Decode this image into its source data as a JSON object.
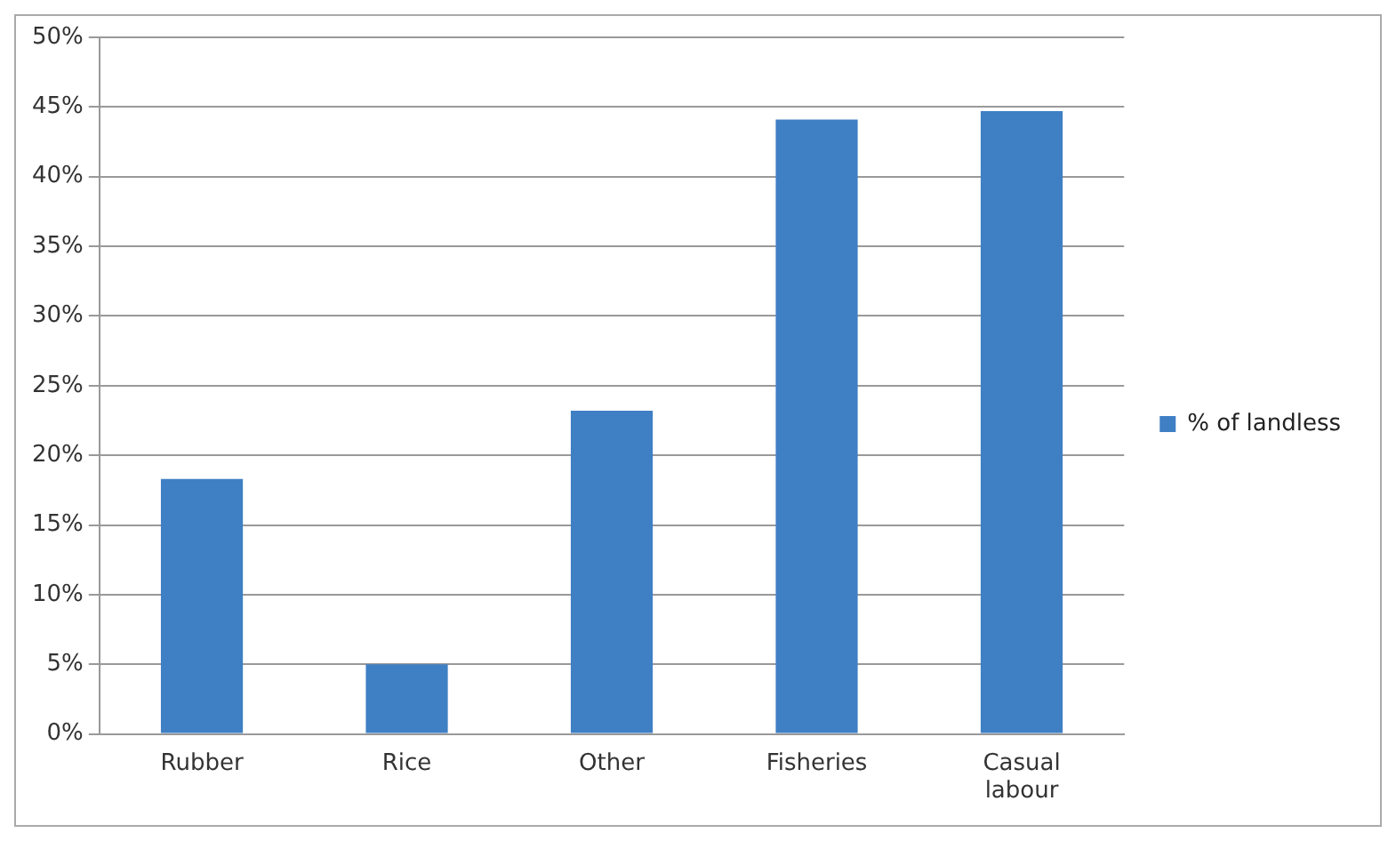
{
  "chart_data": {
    "type": "bar",
    "categories": [
      "Rubber",
      "Rice",
      "Other",
      "Fisheries",
      "Casual labour"
    ],
    "series": [
      {
        "name": "% of landless",
        "color": "#3f7fc4",
        "values": [
          18.3,
          5.0,
          23.2,
          44.1,
          44.7
        ]
      }
    ],
    "ylim": [
      0,
      50
    ],
    "yticks": [
      {
        "value": 0,
        "label": "0%"
      },
      {
        "value": 5,
        "label": "5%"
      },
      {
        "value": 10,
        "label": "10%"
      },
      {
        "value": 15,
        "label": "15%"
      },
      {
        "value": 20,
        "label": "20%"
      },
      {
        "value": 25,
        "label": "25%"
      },
      {
        "value": 30,
        "label": "30%"
      },
      {
        "value": 35,
        "label": "35%"
      },
      {
        "value": 40,
        "label": "40%"
      },
      {
        "value": 45,
        "label": "45%"
      },
      {
        "value": 50,
        "label": "50%"
      }
    ],
    "grid": "y",
    "legend": "right"
  }
}
